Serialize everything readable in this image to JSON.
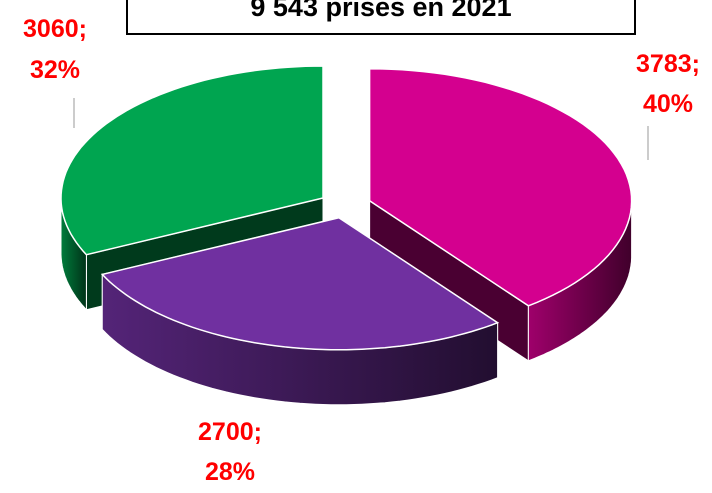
{
  "chart_data": {
    "type": "pie",
    "title": "9 543 prises en 2021",
    "values": [
      3783,
      2700,
      3060
    ],
    "value_labels": [
      "3783;",
      "2700;",
      "3060;"
    ],
    "percents": [
      40,
      28,
      32
    ],
    "percent_labels": [
      "40%",
      "28%",
      "32%"
    ],
    "colors": [
      "#d4008f",
      "#7030a0",
      "#00a550"
    ]
  }
}
